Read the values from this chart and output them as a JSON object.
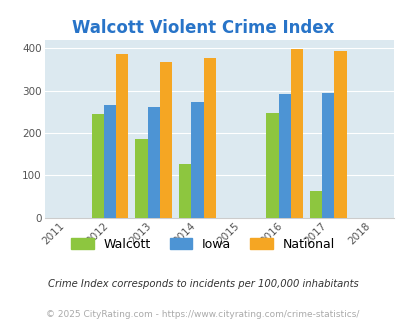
{
  "title": "Walcott Violent Crime Index",
  "title_color": "#2874c8",
  "years": [
    2011,
    2012,
    2013,
    2014,
    2015,
    2016,
    2017,
    2018
  ],
  "bar_years": [
    2012,
    2013,
    2014,
    2016,
    2017
  ],
  "walcott": [
    245,
    185,
    127,
    248,
    63
  ],
  "iowa": [
    265,
    260,
    273,
    291,
    293
  ],
  "national": [
    385,
    368,
    377,
    397,
    393
  ],
  "walcott_color": "#8dc63f",
  "iowa_color": "#4d94d4",
  "national_color": "#f5a623",
  "bg_color": "#dce9f0",
  "ylim": [
    0,
    420
  ],
  "yticks": [
    0,
    100,
    200,
    300,
    400
  ],
  "bar_width": 0.28,
  "legend_labels": [
    "Walcott",
    "Iowa",
    "National"
  ],
  "footnote1": "Crime Index corresponds to incidents per 100,000 inhabitants",
  "footnote2": "© 2025 CityRating.com - https://www.cityrating.com/crime-statistics/",
  "footnote1_color": "#333333",
  "footnote2_color": "#aaaaaa",
  "fig_width": 4.06,
  "fig_height": 3.3
}
